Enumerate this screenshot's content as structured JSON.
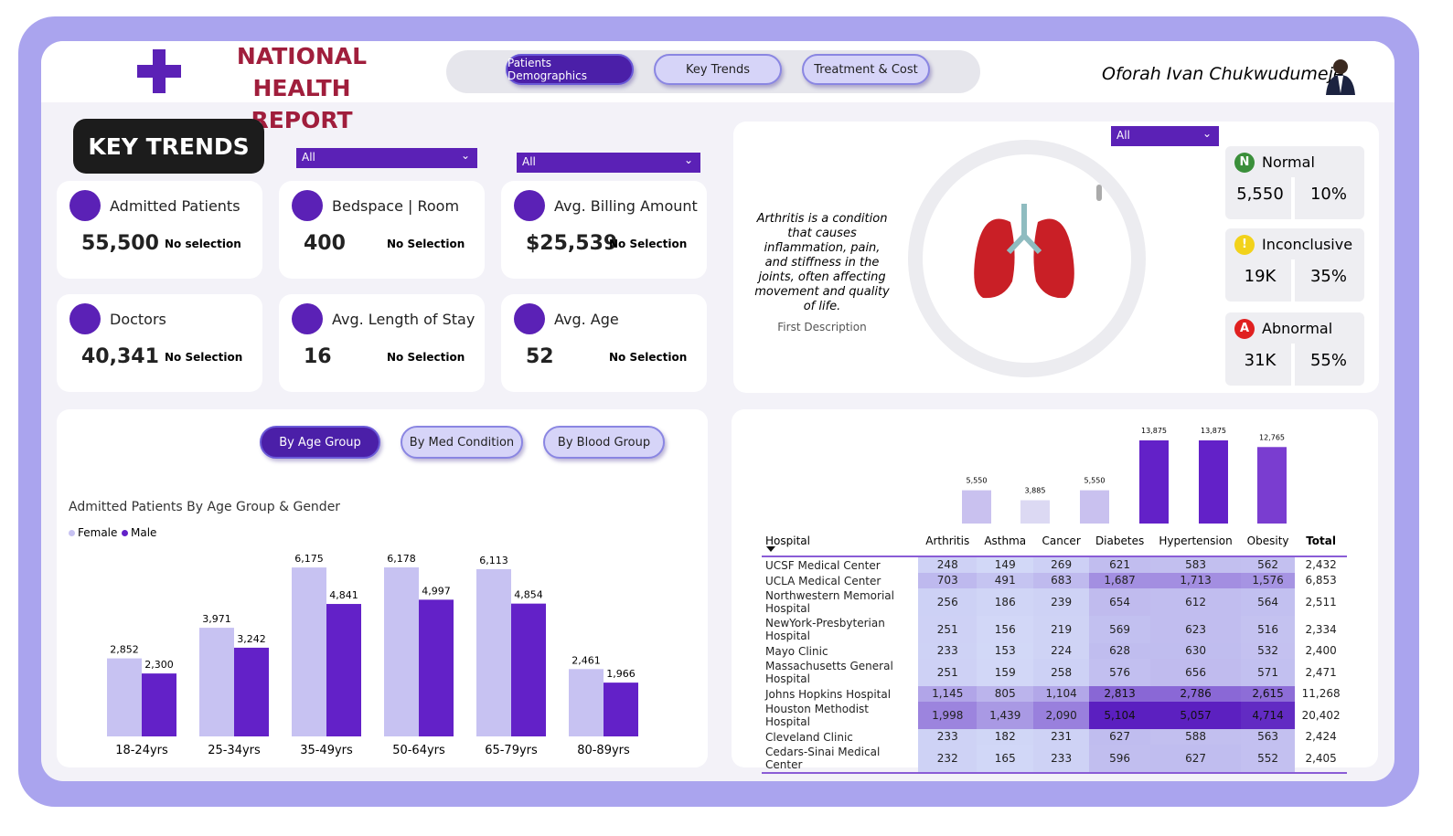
{
  "header": {
    "title_line1": "NATIONAL HEALTH",
    "title_line2": "REPORT",
    "author": "Oforah Ivan Chukwudumeje"
  },
  "nav": [
    "Patients Demographics",
    "Key Trends",
    "Treatment & Cost"
  ],
  "page_label": "KEY TRENDS",
  "slicers": [
    "All",
    "All",
    "All"
  ],
  "kpis": [
    {
      "label": "Admitted Patients",
      "value": "55,500",
      "note": "No selection"
    },
    {
      "label": "Bedspace | Room",
      "value": "400",
      "note": "No Selection"
    },
    {
      "label": "Avg. Billing Amount",
      "value": "$25,539",
      "note": "No Selection"
    },
    {
      "label": "Doctors",
      "value": "40,341",
      "note": "No Selection"
    },
    {
      "label": "Avg. Length of Stay",
      "value": "16",
      "note": "No Selection"
    },
    {
      "label": "Avg. Age",
      "value": "52",
      "note": "No Selection"
    }
  ],
  "description": {
    "text": "Arthritis is a condition that causes inflammation, pain, and stiffness in the joints, often affecting movement and quality of life.",
    "caption": "First Description"
  },
  "test_results": [
    {
      "icon": "N",
      "label": "Normal",
      "value": "5,550",
      "percent": "10%"
    },
    {
      "icon": "!",
      "label": "Inconclusive",
      "value": "19K",
      "percent": "35%"
    },
    {
      "icon": "A",
      "label": "Abnormal",
      "value": "31K",
      "percent": "55%"
    }
  ],
  "chart_buttons": [
    "By Age Group",
    "By Med Condition",
    "By Blood Group"
  ],
  "chart_data": [
    {
      "type": "bar",
      "title": "Admitted Patients By Age Group & Gender",
      "categories": [
        "18-24yrs",
        "25-34yrs",
        "35-49yrs",
        "50-64yrs",
        "65-79yrs",
        "80-89yrs"
      ],
      "series": [
        {
          "name": "Female",
          "color": "#c7c2f2",
          "values": [
            2852,
            3971,
            6175,
            6178,
            6113,
            2461
          ],
          "value_labels": [
            "2,852",
            "3,971",
            "6,175",
            "6,178",
            "6,113",
            "2,461"
          ]
        },
        {
          "name": "Male",
          "color": "#6321c8",
          "values": [
            2300,
            3242,
            4841,
            4997,
            4854,
            1966
          ],
          "value_labels": [
            "2,300",
            "3,242",
            "4,841",
            "4,997",
            "4,854",
            "1,966"
          ]
        }
      ]
    },
    {
      "type": "bar",
      "categories": [
        "Arthritis",
        "Asthma",
        "Cancer",
        "Diabetes",
        "Hypertension",
        "Obesity"
      ],
      "values": [
        5550,
        3885,
        5550,
        13875,
        13875,
        12765
      ],
      "value_labels": [
        "5,550",
        "3,885",
        "5,550",
        "13,875",
        "13,875",
        "12,765"
      ],
      "colors": [
        "#c9c1ef",
        "#dcd9f3",
        "#c9c1ef",
        "#6321c8",
        "#6321c8",
        "#7a3dd0"
      ]
    }
  ],
  "table": {
    "columns": [
      "Hospital",
      "Arthritis",
      "Asthma",
      "Cancer",
      "Diabetes",
      "Hypertension",
      "Obesity",
      "Total"
    ],
    "rows": [
      [
        "UCSF Medical Center",
        "248",
        "149",
        "269",
        "621",
        "583",
        "562",
        "2,432"
      ],
      [
        "UCLA Medical Center",
        "703",
        "491",
        "683",
        "1,687",
        "1,713",
        "1,576",
        "6,853"
      ],
      [
        "Northwestern Memorial Hospital",
        "256",
        "186",
        "239",
        "654",
        "612",
        "564",
        "2,511"
      ],
      [
        "NewYork-Presbyterian Hospital",
        "251",
        "156",
        "219",
        "569",
        "623",
        "516",
        "2,334"
      ],
      [
        "Mayo Clinic",
        "233",
        "153",
        "224",
        "628",
        "630",
        "532",
        "2,400"
      ],
      [
        "Massachusetts General Hospital",
        "251",
        "159",
        "258",
        "576",
        "656",
        "571",
        "2,471"
      ],
      [
        "Johns Hopkins Hospital",
        "1,145",
        "805",
        "1,104",
        "2,813",
        "2,786",
        "2,615",
        "11,268"
      ],
      [
        "Houston Methodist Hospital",
        "1,998",
        "1,439",
        "2,090",
        "5,104",
        "5,057",
        "4,714",
        "20,402"
      ],
      [
        "Cleveland Clinic",
        "233",
        "182",
        "231",
        "627",
        "588",
        "563",
        "2,424"
      ],
      [
        "Cedars-Sinai Medical Center",
        "232",
        "165",
        "233",
        "596",
        "627",
        "552",
        "2,405"
      ]
    ]
  }
}
